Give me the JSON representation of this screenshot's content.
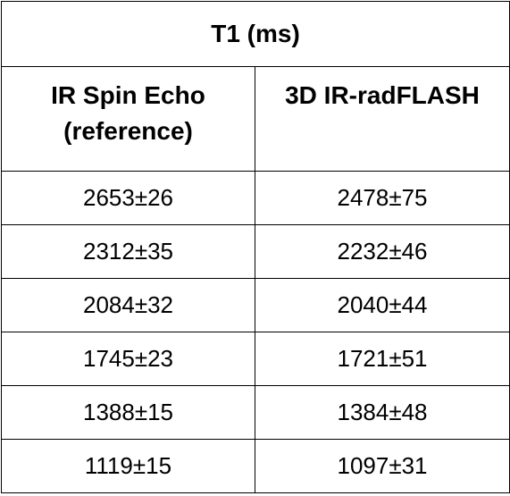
{
  "table": {
    "title": "T1 (ms)",
    "columns": [
      "IR Spin Echo (reference)",
      "3D IR-radFLASH"
    ],
    "rows": [
      [
        "2653±26",
        "2478±75"
      ],
      [
        "2312±35",
        "2232±46"
      ],
      [
        "2084±32",
        "2040±44"
      ],
      [
        "1745±23",
        "1721±51"
      ],
      [
        "1388±15",
        "1384±48"
      ],
      [
        "1119±15",
        "1097±31"
      ]
    ]
  }
}
